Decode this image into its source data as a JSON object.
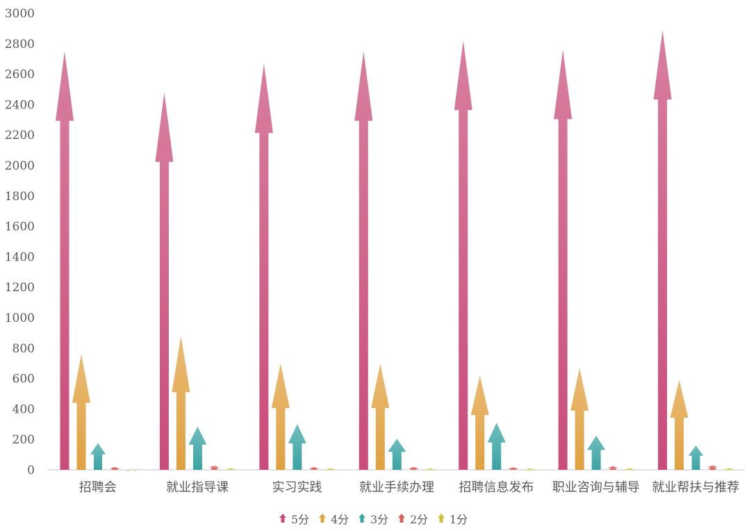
{
  "chart_data": {
    "type": "bar",
    "title": "",
    "xlabel": "",
    "ylabel": "",
    "ylim": [
      0,
      3000
    ],
    "yticks": [
      0,
      200,
      400,
      600,
      800,
      1000,
      1200,
      1400,
      1600,
      1800,
      2000,
      2200,
      2400,
      2600,
      2800,
      3000
    ],
    "grid": false,
    "legend_position": "bottom",
    "categories": [
      "招聘会",
      "就业指导课",
      "实习实践",
      "就业手续办理",
      "招聘信息发布",
      "职业咨询与辅导",
      "就业帮扶与推荐"
    ],
    "series": [
      {
        "name": "5分",
        "color": "#c94c7a",
        "values": [
          2750,
          2480,
          2670,
          2750,
          2820,
          2760,
          2890
        ]
      },
      {
        "name": "4分",
        "color": "#e0a140",
        "values": [
          760,
          880,
          700,
          700,
          620,
          670,
          590
        ]
      },
      {
        "name": "3分",
        "color": "#3aa3a3",
        "values": [
          175,
          285,
          300,
          205,
          310,
          225,
          160
        ]
      },
      {
        "name": "2分",
        "color": "#d9605a",
        "values": [
          20,
          28,
          20,
          20,
          18,
          25,
          30
        ]
      },
      {
        "name": "1分",
        "color": "#c9c23a",
        "values": [
          5,
          12,
          12,
          10,
          10,
          12,
          12
        ]
      }
    ]
  }
}
